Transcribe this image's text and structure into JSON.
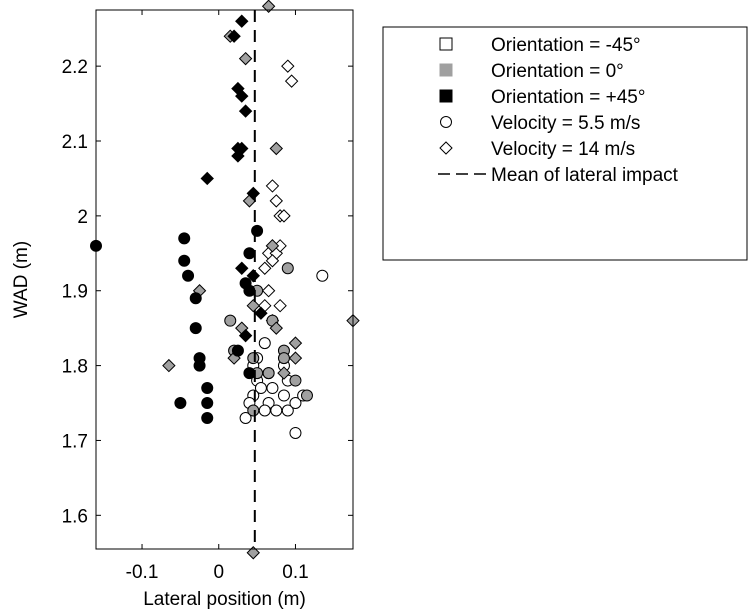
{
  "chart_data": {
    "type": "scatter",
    "title": "",
    "xlabel": "Lateral position (m)",
    "ylabel": "WAD (m)",
    "xlim": [
      -0.16,
      0.175
    ],
    "ylim": [
      1.555,
      2.275
    ],
    "xticks": [
      -0.1,
      0,
      0.1
    ],
    "xtick_labels": [
      "-0.1",
      "0",
      "0.1"
    ],
    "yticks": [
      1.6,
      1.7,
      1.8,
      1.9,
      2.0,
      2.1,
      2.2
    ],
    "ytick_labels": [
      "1.6",
      "1.7",
      "1.8",
      "1.9",
      "2",
      "2.1",
      "2.2"
    ],
    "grid": false,
    "legend_position": "outside-right-top",
    "mean_lateral_impact": 0.047,
    "legend": [
      {
        "label": "Orientation = -45°",
        "symbol": "square",
        "fill": "#ffffff"
      },
      {
        "label": "Orientation = 0°",
        "symbol": "square",
        "fill": "#a0a0a0"
      },
      {
        "label": "Orientation = +45°",
        "symbol": "square",
        "fill": "#000000"
      },
      {
        "label": "Velocity = 5.5 m/s",
        "symbol": "circle",
        "fill": "#ffffff"
      },
      {
        "label": "Velocity = 14 m/s",
        "symbol": "diamond",
        "fill": "#ffffff"
      },
      {
        "label": "Mean of lateral impact",
        "symbol": "dashed-line",
        "fill": "none"
      }
    ],
    "colors": {
      "orientation_neg45": "#ffffff",
      "orientation_0": "#a0a0a0",
      "orientation_pos45": "#000000"
    },
    "series": [
      {
        "orientation": "-45°",
        "velocity": "5.5 m/s",
        "marker": "circle",
        "fill": "#ffffff",
        "points": [
          [
            0.05,
            1.81
          ],
          [
            0.06,
            1.83
          ],
          [
            0.045,
            1.8
          ],
          [
            0.065,
            1.79
          ],
          [
            0.05,
            1.78
          ],
          [
            0.085,
            1.8
          ],
          [
            0.09,
            1.78
          ],
          [
            0.055,
            1.77
          ],
          [
            0.07,
            1.77
          ],
          [
            0.085,
            1.76
          ],
          [
            0.045,
            1.76
          ],
          [
            0.065,
            1.75
          ],
          [
            0.04,
            1.75
          ],
          [
            0.06,
            1.74
          ],
          [
            0.075,
            1.74
          ],
          [
            0.09,
            1.74
          ],
          [
            0.1,
            1.75
          ],
          [
            0.035,
            1.73
          ],
          [
            0.1,
            1.71
          ],
          [
            0.135,
            1.92
          ],
          [
            0.11,
            1.76
          ]
        ]
      },
      {
        "orientation": "-45°",
        "velocity": "14 m/s",
        "marker": "diamond",
        "fill": "#ffffff",
        "points": [
          [
            0.09,
            2.2
          ],
          [
            0.095,
            2.18
          ],
          [
            0.07,
            2.04
          ],
          [
            0.075,
            2.02
          ],
          [
            0.08,
            2.0
          ],
          [
            0.085,
            2.0
          ],
          [
            0.07,
            1.96
          ],
          [
            0.065,
            1.95
          ],
          [
            0.075,
            1.95
          ],
          [
            0.07,
            1.94
          ],
          [
            0.06,
            1.93
          ],
          [
            0.08,
            1.96
          ],
          [
            0.065,
            1.9
          ],
          [
            0.08,
            1.88
          ],
          [
            0.07,
            1.86
          ],
          [
            0.06,
            1.88
          ]
        ]
      },
      {
        "orientation": "0°",
        "velocity": "5.5 m/s",
        "marker": "circle",
        "fill": "#a0a0a0",
        "points": [
          [
            0.09,
            1.93
          ],
          [
            0.085,
            1.82
          ],
          [
            0.085,
            1.81
          ],
          [
            0.065,
            1.79
          ],
          [
            0.05,
            1.79
          ],
          [
            0.1,
            1.78
          ],
          [
            0.115,
            1.76
          ],
          [
            0.045,
            1.74
          ],
          [
            0.07,
            1.86
          ],
          [
            0.015,
            1.86
          ],
          [
            0.02,
            1.82
          ],
          [
            0.045,
            1.81
          ],
          [
            0.05,
            1.9
          ]
        ]
      },
      {
        "orientation": "0°",
        "velocity": "14 m/s",
        "marker": "diamond",
        "fill": "#a0a0a0",
        "points": [
          [
            0.035,
            2.21
          ],
          [
            0.04,
            2.02
          ],
          [
            0.075,
            2.09
          ],
          [
            -0.025,
            1.9
          ],
          [
            0.03,
            1.85
          ],
          [
            0.02,
            1.81
          ],
          [
            0.045,
            1.55
          ],
          [
            -0.065,
            1.8
          ],
          [
            0.065,
            2.28
          ],
          [
            0.075,
            1.85
          ],
          [
            0.1,
            1.83
          ],
          [
            0.1,
            1.81
          ],
          [
            0.085,
            1.79
          ],
          [
            0.175,
            1.86
          ],
          [
            0.045,
            1.88
          ],
          [
            0.015,
            2.24
          ],
          [
            0.07,
            1.96
          ]
        ]
      },
      {
        "orientation": "+45°",
        "velocity": "5.5 m/s",
        "marker": "circle",
        "fill": "#000000",
        "points": [
          [
            -0.16,
            1.96
          ],
          [
            -0.045,
            1.97
          ],
          [
            -0.045,
            1.94
          ],
          [
            -0.04,
            1.92
          ],
          [
            -0.03,
            1.89
          ],
          [
            -0.03,
            1.85
          ],
          [
            -0.025,
            1.81
          ],
          [
            -0.025,
            1.8
          ],
          [
            -0.015,
            1.77
          ],
          [
            -0.015,
            1.75
          ],
          [
            -0.015,
            1.73
          ],
          [
            -0.05,
            1.75
          ],
          [
            0.05,
            1.98
          ],
          [
            0.04,
            1.95
          ],
          [
            0.035,
            1.91
          ],
          [
            0.04,
            1.9
          ],
          [
            0.025,
            1.82
          ],
          [
            0.04,
            1.79
          ]
        ]
      },
      {
        "orientation": "+45°",
        "velocity": "14 m/s",
        "marker": "diamond",
        "fill": "#000000",
        "points": [
          [
            0.03,
            2.26
          ],
          [
            0.02,
            2.24
          ],
          [
            0.025,
            2.17
          ],
          [
            0.03,
            2.16
          ],
          [
            0.035,
            2.14
          ],
          [
            0.025,
            2.09
          ],
          [
            0.03,
            2.09
          ],
          [
            0.025,
            2.08
          ],
          [
            -0.015,
            2.05
          ],
          [
            0.045,
            2.03
          ],
          [
            0.045,
            1.92
          ],
          [
            0.035,
            1.84
          ],
          [
            0.055,
            1.87
          ],
          [
            0.03,
            1.93
          ]
        ]
      }
    ]
  }
}
